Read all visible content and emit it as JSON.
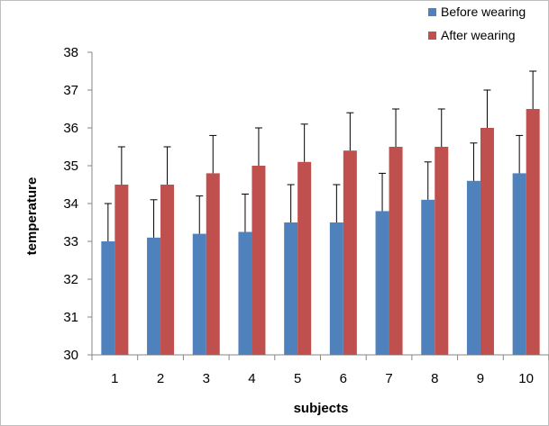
{
  "chart_data": {
    "type": "bar",
    "title": "",
    "xlabel": "subjects",
    "ylabel": "temperature",
    "categories": [
      "1",
      "2",
      "3",
      "4",
      "5",
      "6",
      "7",
      "8",
      "9",
      "10"
    ],
    "ylim": [
      30,
      38
    ],
    "yticks": [
      "30",
      "31",
      "32",
      "33",
      "34",
      "35",
      "36",
      "37",
      "38"
    ],
    "grid": false,
    "legend_position": "top-right",
    "series": [
      {
        "name": "Before wearing",
        "color": "#4f81bd",
        "values": [
          33.0,
          33.1,
          33.2,
          33.25,
          33.5,
          33.5,
          33.8,
          34.1,
          34.6,
          34.8
        ],
        "error_upper": [
          34.0,
          34.1,
          34.2,
          34.25,
          34.5,
          34.5,
          34.8,
          35.1,
          35.6,
          35.8
        ]
      },
      {
        "name": "After wearing",
        "color": "#c0504d",
        "values": [
          34.5,
          34.5,
          34.8,
          35.0,
          35.1,
          35.4,
          35.5,
          35.5,
          36.0,
          36.5
        ],
        "error_upper": [
          35.5,
          35.5,
          35.8,
          36.0,
          36.1,
          36.4,
          36.5,
          36.5,
          37.0,
          37.5
        ]
      }
    ]
  }
}
